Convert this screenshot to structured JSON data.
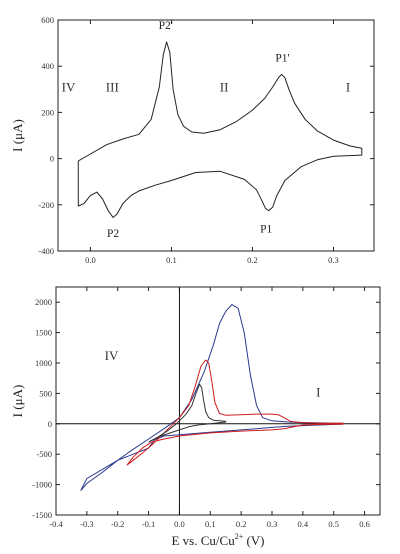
{
  "chart_data": [
    {
      "type": "line",
      "xlim": [
        -0.04,
        0.35
      ],
      "ylim": [
        -400,
        600
      ],
      "xticks": [
        0.0,
        0.1,
        0.2,
        0.3
      ],
      "xtick_labels": [
        "0.0",
        "0.1",
        "0.2",
        "0.3"
      ],
      "yticks": [
        -400,
        -200,
        0,
        200,
        400,
        600
      ],
      "ytick_labels": [
        "-400",
        "-200",
        "0",
        "200",
        "400",
        "600"
      ],
      "xlabel": "",
      "ylabel": "I (μA)",
      "grid": false,
      "regions": [
        {
          "label": "IV",
          "x": -0.027,
          "y": 290
        },
        {
          "label": "III",
          "x": 0.027,
          "y": 290
        },
        {
          "label": "II",
          "x": 0.165,
          "y": 290
        },
        {
          "label": "I",
          "x": 0.318,
          "y": 290
        }
      ],
      "peaks": [
        {
          "label": "P2'",
          "x": 0.093,
          "y": 560
        },
        {
          "label": "P1'",
          "x": 0.237,
          "y": 420
        },
        {
          "label": "P1",
          "x": 0.217,
          "y": -320
        },
        {
          "label": "P2",
          "x": 0.028,
          "y": -340
        }
      ],
      "series": [
        {
          "color": "#222222",
          "x": [
            -0.015,
            0.0,
            0.02,
            0.04,
            0.06,
            0.075,
            0.085,
            0.09,
            0.094,
            0.098,
            0.102,
            0.108,
            0.115,
            0.125,
            0.14,
            0.16,
            0.18,
            0.2,
            0.215,
            0.225,
            0.232,
            0.236,
            0.24,
            0.245,
            0.252,
            0.265,
            0.28,
            0.3,
            0.32,
            0.335,
            0.335,
            0.3,
            0.28,
            0.26,
            0.24,
            0.23,
            0.225,
            0.22,
            0.216,
            0.212,
            0.205,
            0.19,
            0.16,
            0.13,
            0.1,
            0.08,
            0.06,
            0.05,
            0.04,
            0.033,
            0.028,
            0.022,
            0.015,
            0.008,
            0.0,
            -0.008,
            -0.015,
            -0.015
          ],
          "y": [
            -10,
            20,
            60,
            85,
            105,
            170,
            310,
            450,
            505,
            460,
            300,
            190,
            140,
            115,
            110,
            125,
            160,
            210,
            260,
            310,
            350,
            365,
            350,
            300,
            240,
            170,
            120,
            80,
            55,
            45,
            15,
            10,
            -5,
            -35,
            -95,
            -160,
            -210,
            -225,
            -215,
            -185,
            -135,
            -90,
            -55,
            -60,
            -95,
            -115,
            -140,
            -160,
            -195,
            -240,
            -255,
            -225,
            -175,
            -145,
            -160,
            -195,
            -205,
            -10
          ]
        }
      ]
    },
    {
      "type": "line",
      "xlim": [
        -0.4,
        0.65
      ],
      "ylim": [
        -1500,
        2250
      ],
      "xticks": [
        -0.4,
        -0.3,
        -0.2,
        -0.1,
        0.0,
        0.1,
        0.2,
        0.3,
        0.4,
        0.5,
        0.6
      ],
      "xtick_labels": [
        "-0.4",
        "-0.3",
        "-0.2",
        "-0.1",
        "0.0",
        "0.1",
        "0.2",
        "0.3",
        "0.4",
        "0.5",
        "0.6"
      ],
      "yticks": [
        -1500,
        -1000,
        -500,
        0,
        500,
        1000,
        1500,
        2000
      ],
      "ytick_labels": [
        "-1500",
        "-1000",
        "-500",
        "0",
        "500",
        "1000",
        "1500",
        "2000"
      ],
      "xlabel_parts": [
        "E vs. Cu/Cu",
        "2+",
        "  (V)"
      ],
      "ylabel": "I (μA)",
      "grid": false,
      "regions": [
        {
          "label": "IV",
          "x": -0.22,
          "y": 1050
        },
        {
          "label": "I",
          "x": 0.45,
          "y": 450
        }
      ],
      "series": [
        {
          "color": "#2b3a8f",
          "x": [
            -0.32,
            -0.3,
            -0.25,
            -0.2,
            -0.15,
            -0.1,
            -0.05,
            0.0,
            0.04,
            0.08,
            0.11,
            0.13,
            0.15,
            0.17,
            0.19,
            0.21,
            0.23,
            0.25,
            0.27,
            0.3,
            0.35,
            0.4,
            0.45,
            0.5,
            0.53,
            0.53,
            0.45,
            0.35,
            0.3,
            0.25,
            0.2,
            0.1,
            0.0,
            -0.05,
            -0.08,
            -0.1,
            -0.15,
            -0.2,
            -0.25,
            -0.3,
            -0.32
          ],
          "y": [
            -1100,
            -980,
            -800,
            -600,
            -420,
            -250,
            -80,
            100,
            400,
            850,
            1300,
            1650,
            1850,
            1960,
            1900,
            1500,
            800,
            300,
            100,
            50,
            30,
            20,
            15,
            10,
            10,
            -5,
            -20,
            -40,
            -60,
            -80,
            -100,
            -140,
            -180,
            -200,
            -260,
            -400,
            -500,
            -600,
            -750,
            -900,
            -1100
          ]
        },
        {
          "color": "#d01c1c",
          "x": [
            -0.17,
            -0.15,
            -0.12,
            -0.09,
            -0.06,
            -0.03,
            0.0,
            0.03,
            0.05,
            0.07,
            0.085,
            0.095,
            0.105,
            0.115,
            0.13,
            0.15,
            0.2,
            0.25,
            0.3,
            0.32,
            0.34,
            0.36,
            0.4,
            0.45,
            0.5,
            0.53,
            0.53,
            0.45,
            0.4,
            0.36,
            0.34,
            0.3,
            0.2,
            0.1,
            0.0,
            -0.05,
            -0.09,
            -0.12,
            -0.15,
            -0.17
          ],
          "y": [
            -680,
            -600,
            -480,
            -350,
            -200,
            -50,
            100,
            300,
            600,
            950,
            1050,
            1000,
            700,
            350,
            170,
            140,
            150,
            160,
            160,
            150,
            100,
            40,
            20,
            10,
            10,
            10,
            -5,
            -10,
            -20,
            -60,
            -80,
            -100,
            -120,
            -150,
            -200,
            -250,
            -300,
            -400,
            -550,
            -680
          ]
        },
        {
          "color": "#333333",
          "x": [
            -0.1,
            -0.07,
            -0.04,
            -0.01,
            0.02,
            0.04,
            0.055,
            0.065,
            0.072,
            0.078,
            0.085,
            0.095,
            0.11,
            0.13,
            0.15,
            0.15,
            0.1,
            0.06,
            0.03,
            0.0,
            -0.03,
            -0.06,
            -0.08,
            -0.1
          ],
          "y": [
            -300,
            -220,
            -120,
            0,
            150,
            300,
            520,
            650,
            600,
            400,
            200,
            100,
            60,
            50,
            40,
            30,
            0,
            -20,
            -50,
            -100,
            -150,
            -200,
            -250,
            -300
          ]
        }
      ]
    }
  ]
}
